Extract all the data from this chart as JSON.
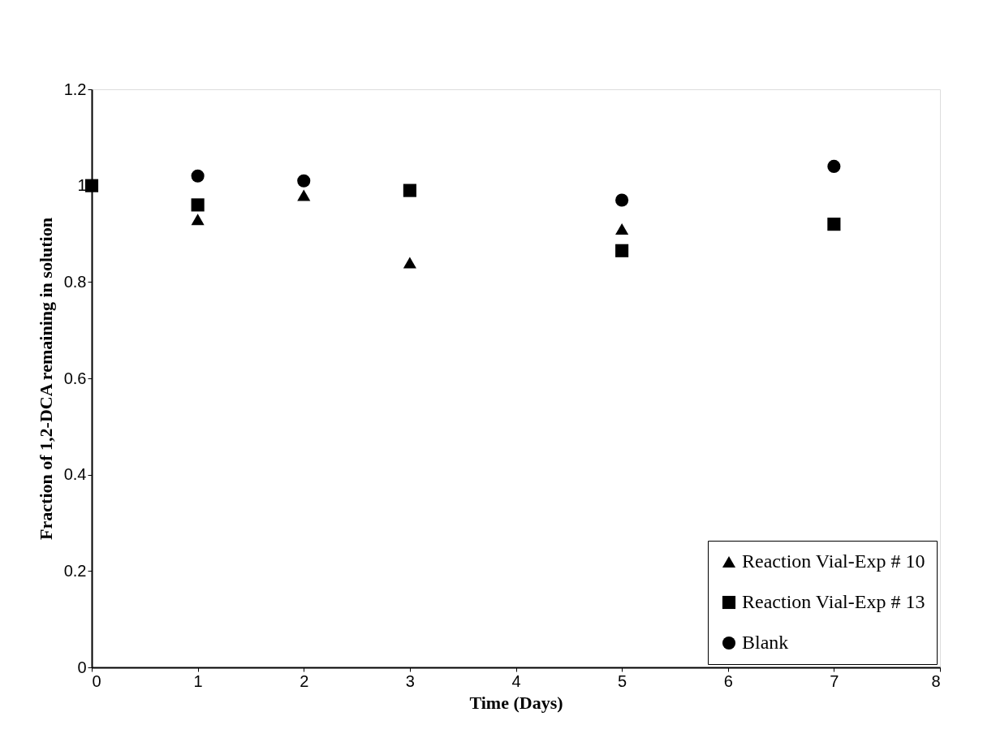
{
  "chart_data": {
    "type": "scatter",
    "xlabel": "Time (Days)",
    "ylabel": "Fraction of 1,2-DCA remaining in solution",
    "x": [
      0,
      1,
      2,
      3,
      5,
      7
    ],
    "series": [
      {
        "name": "Reaction Vial-Exp # 10",
        "color": "#000000",
        "marker": "triangle",
        "values": [
          null,
          0.93,
          0.98,
          0.84,
          0.91,
          null
        ]
      },
      {
        "name": "Reaction Vial-Exp # 13",
        "color": "#000000",
        "marker": "square",
        "values": [
          1.0,
          0.96,
          null,
          0.99,
          0.865,
          0.92
        ]
      },
      {
        "name": "Blank",
        "color": "#000000",
        "marker": "circle",
        "values": [
          null,
          1.02,
          1.01,
          null,
          0.97,
          1.04
        ]
      }
    ],
    "xlim": [
      0,
      8
    ],
    "xticks": [
      0,
      1,
      2,
      3,
      4,
      5,
      6,
      7,
      8
    ],
    "ylim": [
      0,
      1.2
    ],
    "yticks": [
      0,
      0.2,
      0.4,
      0.6,
      0.8,
      1,
      1.2
    ],
    "grid": false,
    "legend": "bottom right"
  }
}
